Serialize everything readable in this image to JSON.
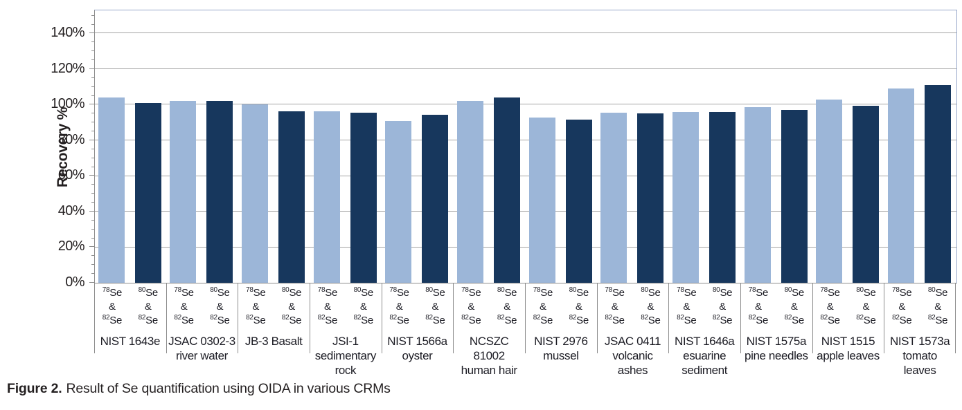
{
  "caption": {
    "prefix": "Figure 2.",
    "text": "Result of Se quantification using OIDA in various CRMs"
  },
  "chart_data": {
    "type": "bar",
    "y_axis_title": "Recovery %",
    "y_axis": {
      "min": 0,
      "max": 153,
      "tick_step": 20,
      "minor_step": 5,
      "ticks": [
        {
          "label": "0%",
          "value": 0
        },
        {
          "label": "20%",
          "value": 20
        },
        {
          "label": "40%",
          "value": 40
        },
        {
          "label": "60%",
          "value": 60
        },
        {
          "label": "80%",
          "value": 80
        },
        {
          "label": "100%",
          "value": 100
        },
        {
          "label": "120%",
          "value": 120
        },
        {
          "label": "140%",
          "value": 140
        }
      ],
      "grid": true
    },
    "series": [
      {
        "key": "78se-82se",
        "name": "78Se & 82Se",
        "sup_top": "78",
        "element": "Se",
        "joiner": "&",
        "sup_bottom": "82",
        "color": "#9cb6d8"
      },
      {
        "key": "80se-82se",
        "name": "80Se & 82Se",
        "sup_top": "80",
        "element": "Se",
        "joiner": "&",
        "sup_bottom": "82",
        "color": "#17375d"
      }
    ],
    "groups": [
      {
        "name_lines": [
          "NIST 1643e"
        ],
        "values": [
          104,
          101
        ]
      },
      {
        "name_lines": [
          "JSAC 0302-3",
          "river water"
        ],
        "values": [
          102,
          102
        ]
      },
      {
        "name_lines": [
          "JB-3 Basalt"
        ],
        "values": [
          100,
          96.5
        ]
      },
      {
        "name_lines": [
          "JSI-1",
          "sedimentary",
          "rock"
        ],
        "values": [
          96.5,
          95.5
        ]
      },
      {
        "name_lines": [
          "NIST 1566a",
          "oyster"
        ],
        "values": [
          91,
          94.5
        ]
      },
      {
        "name_lines": [
          "NCSZC",
          "81002",
          "human hair"
        ],
        "values": [
          102,
          104
        ]
      },
      {
        "name_lines": [
          "NIST 2976",
          "mussel"
        ],
        "values": [
          93,
          91.5
        ]
      },
      {
        "name_lines": [
          "JSAC 0411",
          "volcanic",
          "ashes"
        ],
        "values": [
          95.5,
          95
        ]
      },
      {
        "name_lines": [
          "NIST 1646a",
          "esuarine",
          "sediment"
        ],
        "values": [
          96,
          96
        ]
      },
      {
        "name_lines": [
          "NIST 1575a",
          "pine needles"
        ],
        "values": [
          98.5,
          97
        ]
      },
      {
        "name_lines": [
          "NIST 1515",
          "apple leaves"
        ],
        "values": [
          103,
          99.5
        ]
      },
      {
        "name_lines": [
          "NIST 1573a",
          "tomato",
          "leaves"
        ],
        "values": [
          109,
          111
        ]
      }
    ]
  }
}
